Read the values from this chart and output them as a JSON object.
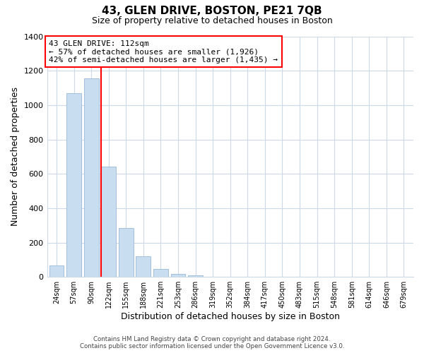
{
  "title": "43, GLEN DRIVE, BOSTON, PE21 7QB",
  "subtitle": "Size of property relative to detached houses in Boston",
  "xlabel": "Distribution of detached houses by size in Boston",
  "ylabel": "Number of detached properties",
  "bar_labels": [
    "24sqm",
    "57sqm",
    "90sqm",
    "122sqm",
    "155sqm",
    "188sqm",
    "221sqm",
    "253sqm",
    "286sqm",
    "319sqm",
    "352sqm",
    "384sqm",
    "417sqm",
    "450sqm",
    "483sqm",
    "515sqm",
    "548sqm",
    "581sqm",
    "614sqm",
    "646sqm",
    "679sqm"
  ],
  "bar_heights": [
    65,
    1070,
    1155,
    640,
    285,
    120,
    47,
    18,
    8,
    0,
    0,
    0,
    0,
    0,
    0,
    0,
    0,
    0,
    0,
    0,
    0
  ],
  "bar_color": "#c8ddf0",
  "bar_edge_color": "#9ab8d8",
  "red_line_label": "43 GLEN DRIVE: 112sqm",
  "annotation_line1": "← 57% of detached houses are smaller (1,926)",
  "annotation_line2": "42% of semi-detached houses are larger (1,435) →",
  "ylim": [
    0,
    1400
  ],
  "yticks": [
    0,
    200,
    400,
    600,
    800,
    1000,
    1200,
    1400
  ],
  "footer_line1": "Contains HM Land Registry data © Crown copyright and database right 2024.",
  "footer_line2": "Contains public sector information licensed under the Open Government Licence v3.0.",
  "bg_color": "#ffffff",
  "grid_color": "#ccd9e8"
}
